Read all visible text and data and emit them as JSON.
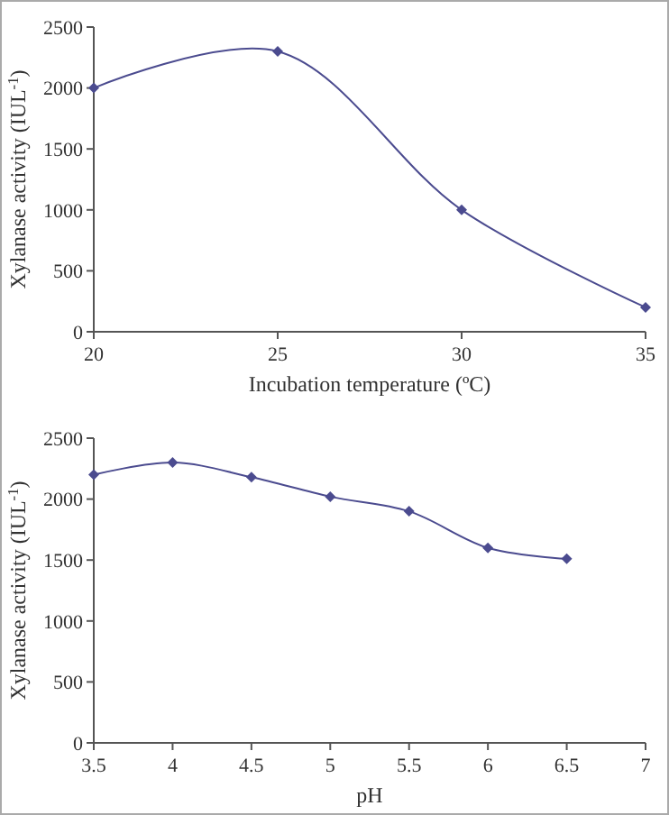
{
  "chart_data": [
    {
      "type": "line",
      "xlabel": "Incubation temperature (ºC)",
      "ylabel": "Xylanase activity (IUL$^{-1}$)",
      "x": [
        20,
        25,
        30,
        35
      ],
      "series": [
        {
          "color": "#4b4b8f",
          "values": [
            2000,
            2300,
            1000,
            200
          ]
        }
      ],
      "xlim": [
        20,
        35
      ],
      "xticks": [
        20,
        25,
        30,
        35
      ],
      "ylim": [
        0,
        2500
      ],
      "yticks": [
        0,
        500,
        1000,
        1500,
        2000,
        2500
      ],
      "grid": false,
      "marker": "diamond",
      "line_style": "solid"
    },
    {
      "type": "line",
      "xlabel": "pH",
      "ylabel": "Xylanase activity (IUL$^{-1}$)",
      "x": [
        3.5,
        4,
        4.5,
        5,
        5.5,
        6,
        6.5
      ],
      "series": [
        {
          "color": "#4b4b8f",
          "values": [
            2200,
            2300,
            2180,
            2020,
            1900,
            1600,
            1510
          ]
        }
      ],
      "xlim": [
        3.5,
        7
      ],
      "xticks": [
        3.5,
        4,
        4.5,
        5,
        5.5,
        6,
        6.5,
        7
      ],
      "ylim": [
        0,
        2500
      ],
      "yticks": [
        0,
        500,
        1000,
        1500,
        2000,
        2500
      ],
      "grid": false,
      "marker": "diamond",
      "line_style": "solid"
    }
  ]
}
